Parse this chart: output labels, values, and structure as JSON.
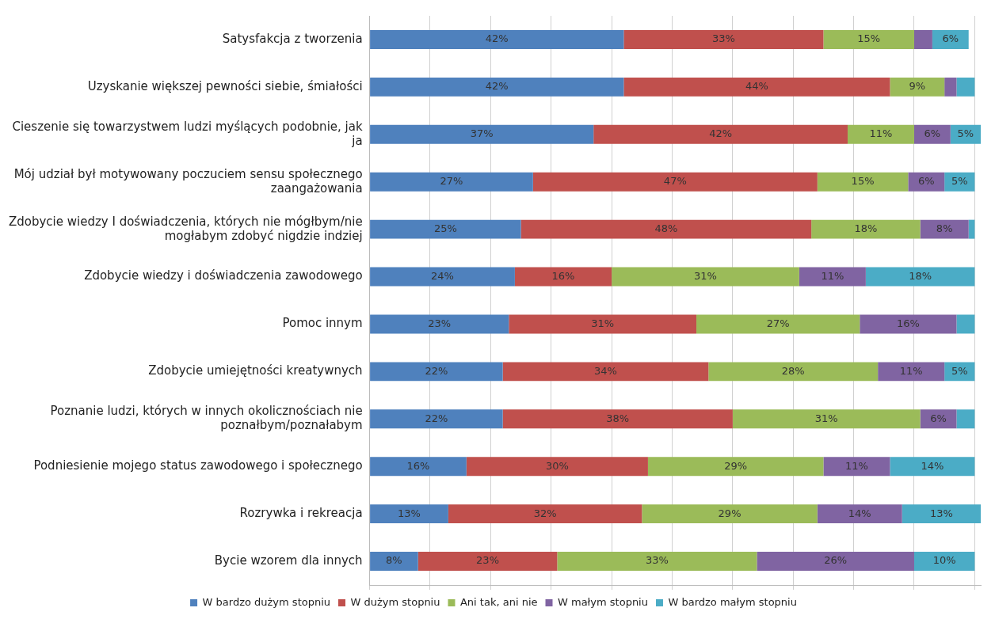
{
  "chart_data": {
    "type": "bar",
    "orientation": "horizontal",
    "stacked": true,
    "grid": "x",
    "legend": "bottom",
    "tick_labels": "y",
    "categories": [
      "Satysfakcja z tworzenia",
      "Uzyskanie większej pewności siebie, śmiałości",
      "Cieszenie się towarzystwem ludzi myślących podobnie, jak ja",
      "Mój udział był motywowany poczuciem sensu społecznego zaangażowania",
      "Zdobycie wiedzy I doświadczenia, których nie mógłbym/nie mogłabym zdobyć nigdzie indziej",
      "Zdobycie wiedzy i doświadczenia zawodowego",
      "Pomoc innym",
      "Zdobycie umiejętności kreatywnych",
      "Poznanie ludzi, których w innych okolicznościach nie poznałbym/poznałabym",
      "Podniesienie mojego status zawodowego i społecznego",
      "Rozrywka i rekreacja",
      "Bycie wzorem dla innych"
    ],
    "xlim": [
      0,
      101
    ],
    "xticks": [
      {
        "value": 0,
        "label": null
      },
      {
        "value": 10,
        "label": null
      },
      {
        "value": 20,
        "label": null
      },
      {
        "value": 30,
        "label": null
      },
      {
        "value": 40,
        "label": null
      },
      {
        "value": 50,
        "label": null
      },
      {
        "value": 60,
        "label": null
      },
      {
        "value": 70,
        "label": null
      },
      {
        "value": 80,
        "label": null
      },
      {
        "value": 90,
        "label": null
      },
      {
        "value": 100,
        "label": null
      }
    ],
    "series": [
      {
        "name": "W bardzo dużym stopniu",
        "color": "#4f81bd",
        "values": [
          42,
          42,
          37,
          27,
          25,
          24,
          23,
          22,
          22,
          16,
          13,
          8
        ],
        "value_labels": [
          "42%",
          "42%",
          "37%",
          "27%",
          "25%",
          "24%",
          "23%",
          "22%",
          "22%",
          "16%",
          "13%",
          "8%"
        ]
      },
      {
        "name": "W dużym stopniu",
        "color": "#c0504d",
        "values": [
          33,
          44,
          42,
          47,
          48,
          16,
          31,
          34,
          38,
          30,
          32,
          23
        ],
        "value_labels": [
          "33%",
          "44%",
          "42%",
          "47%",
          "48%",
          "16%",
          "31%",
          "34%",
          "38%",
          "30%",
          "32%",
          "23%"
        ]
      },
      {
        "name": "Ani tak, ani nie",
        "color": "#9bbb59",
        "values": [
          15,
          9,
          11,
          15,
          18,
          31,
          27,
          28,
          31,
          29,
          29,
          33
        ],
        "value_labels": [
          "15%",
          "9%",
          "11%",
          "15%",
          "18%",
          "31%",
          "27%",
          "28%",
          "31%",
          "29%",
          "29%",
          "33%"
        ]
      },
      {
        "name": "W małym stopniu",
        "color": "#8064a2",
        "values": [
          3,
          2,
          6,
          6,
          8,
          11,
          16,
          11,
          6,
          11,
          14,
          26
        ],
        "value_labels": [
          null,
          null,
          "6%",
          "6%",
          "8%",
          "11%",
          "16%",
          "11%",
          "6%",
          "11%",
          "14%",
          "26%"
        ]
      },
      {
        "name": "W bardzo małym stopniu",
        "color": "#4bacc6",
        "values": [
          6,
          3,
          5,
          5,
          1,
          18,
          3,
          5,
          3,
          14,
          13,
          10
        ],
        "value_labels": [
          "6%",
          null,
          "5%",
          "5%",
          null,
          "18%",
          null,
          "5%",
          null,
          "14%",
          "13%",
          "10%"
        ]
      }
    ]
  }
}
